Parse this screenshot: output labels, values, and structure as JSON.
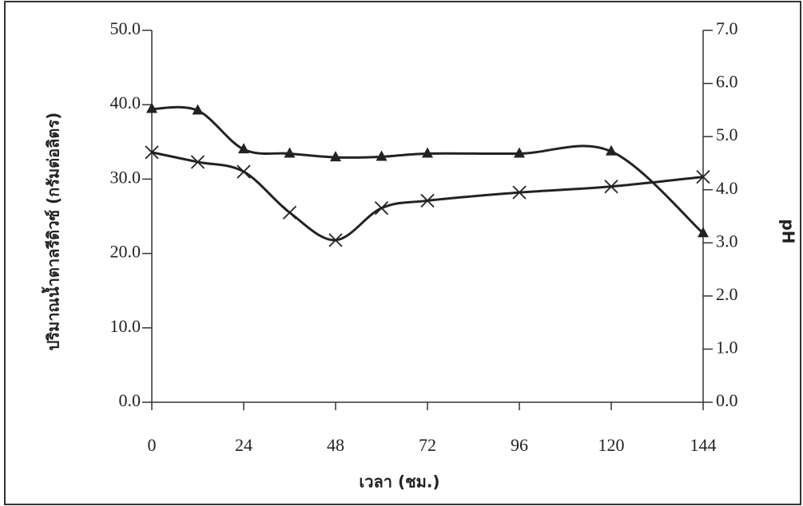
{
  "chart_data": {
    "type": "line",
    "x_label": "เวลา (ชม.)",
    "y_label": "ปริมาณน้ำตาลรีดิวซ์ (กรัมต่อลิตร)",
    "y2_label": "pH",
    "x": [
      0,
      12,
      24,
      36,
      48,
      60,
      72,
      96,
      120,
      144
    ],
    "xlim": [
      0,
      144
    ],
    "xticks": [
      0,
      24,
      48,
      72,
      96,
      120,
      144
    ],
    "ylim": [
      0,
      50
    ],
    "yticks": [
      {
        "value": 0,
        "label": "0.0"
      },
      {
        "value": 10,
        "label": "10.0"
      },
      {
        "value": 20,
        "label": "20.0"
      },
      {
        "value": 30,
        "label": "30.0"
      },
      {
        "value": 40,
        "label": "40.0"
      },
      {
        "value": 50,
        "label": "50.0"
      }
    ],
    "y2lim": [
      0,
      7
    ],
    "y2ticks": [
      {
        "value": 0,
        "label": "0.0"
      },
      {
        "value": 1,
        "label": "1.0"
      },
      {
        "value": 2,
        "label": "2.0"
      },
      {
        "value": 3,
        "label": "3.0"
      },
      {
        "value": 4,
        "label": "4.0"
      },
      {
        "value": 5,
        "label": "5.0"
      },
      {
        "value": 6,
        "label": "6.0"
      },
      {
        "value": 7,
        "label": "7.0"
      }
    ],
    "series": [
      {
        "color": "#222222",
        "marker": "x",
        "values": [
          33.6,
          32.3,
          31.0,
          25.5,
          21.8,
          26.1,
          27.1,
          28.2,
          29.0,
          30.3
        ]
      },
      {
        "color": "#222222",
        "marker": "triangle",
        "axis": "y2",
        "values": [
          5.52,
          5.49,
          4.76,
          4.68,
          4.61,
          4.62,
          4.68,
          4.68,
          4.72,
          3.18
        ]
      }
    ]
  }
}
